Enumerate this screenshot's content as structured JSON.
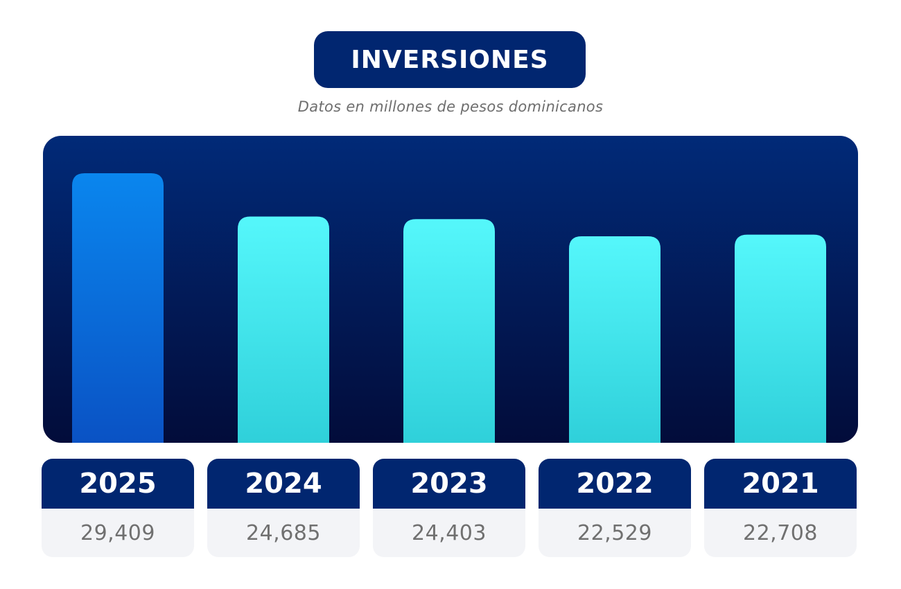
{
  "title": "INVERSIONES",
  "subtitle": "Datos en millones de pesos dominicanos",
  "colors": {
    "navy": "#012670",
    "panel_top": "#012a78",
    "panel_bottom": "#020c3a",
    "highlight_top": "#0a86ee",
    "highlight_bottom": "#0a52c4",
    "bar_top": "#55f7fb",
    "bar_bottom": "#2fd0da",
    "card_bg": "#f3f4f7",
    "value_text": "#707070"
  },
  "chart_data": {
    "type": "bar",
    "categories": [
      "2025",
      "2024",
      "2023",
      "2022",
      "2021"
    ],
    "values": [
      29409,
      24685,
      24403,
      22529,
      22708
    ],
    "value_labels": [
      "29,409",
      "24,685",
      "24,403",
      "22,529",
      "22,708"
    ],
    "highlight_index": 0,
    "title": "INVERSIONES",
    "subtitle": "Datos en millones de pesos dominicanos",
    "xlabel": "",
    "ylabel": "",
    "grid": false,
    "legend": "none"
  }
}
